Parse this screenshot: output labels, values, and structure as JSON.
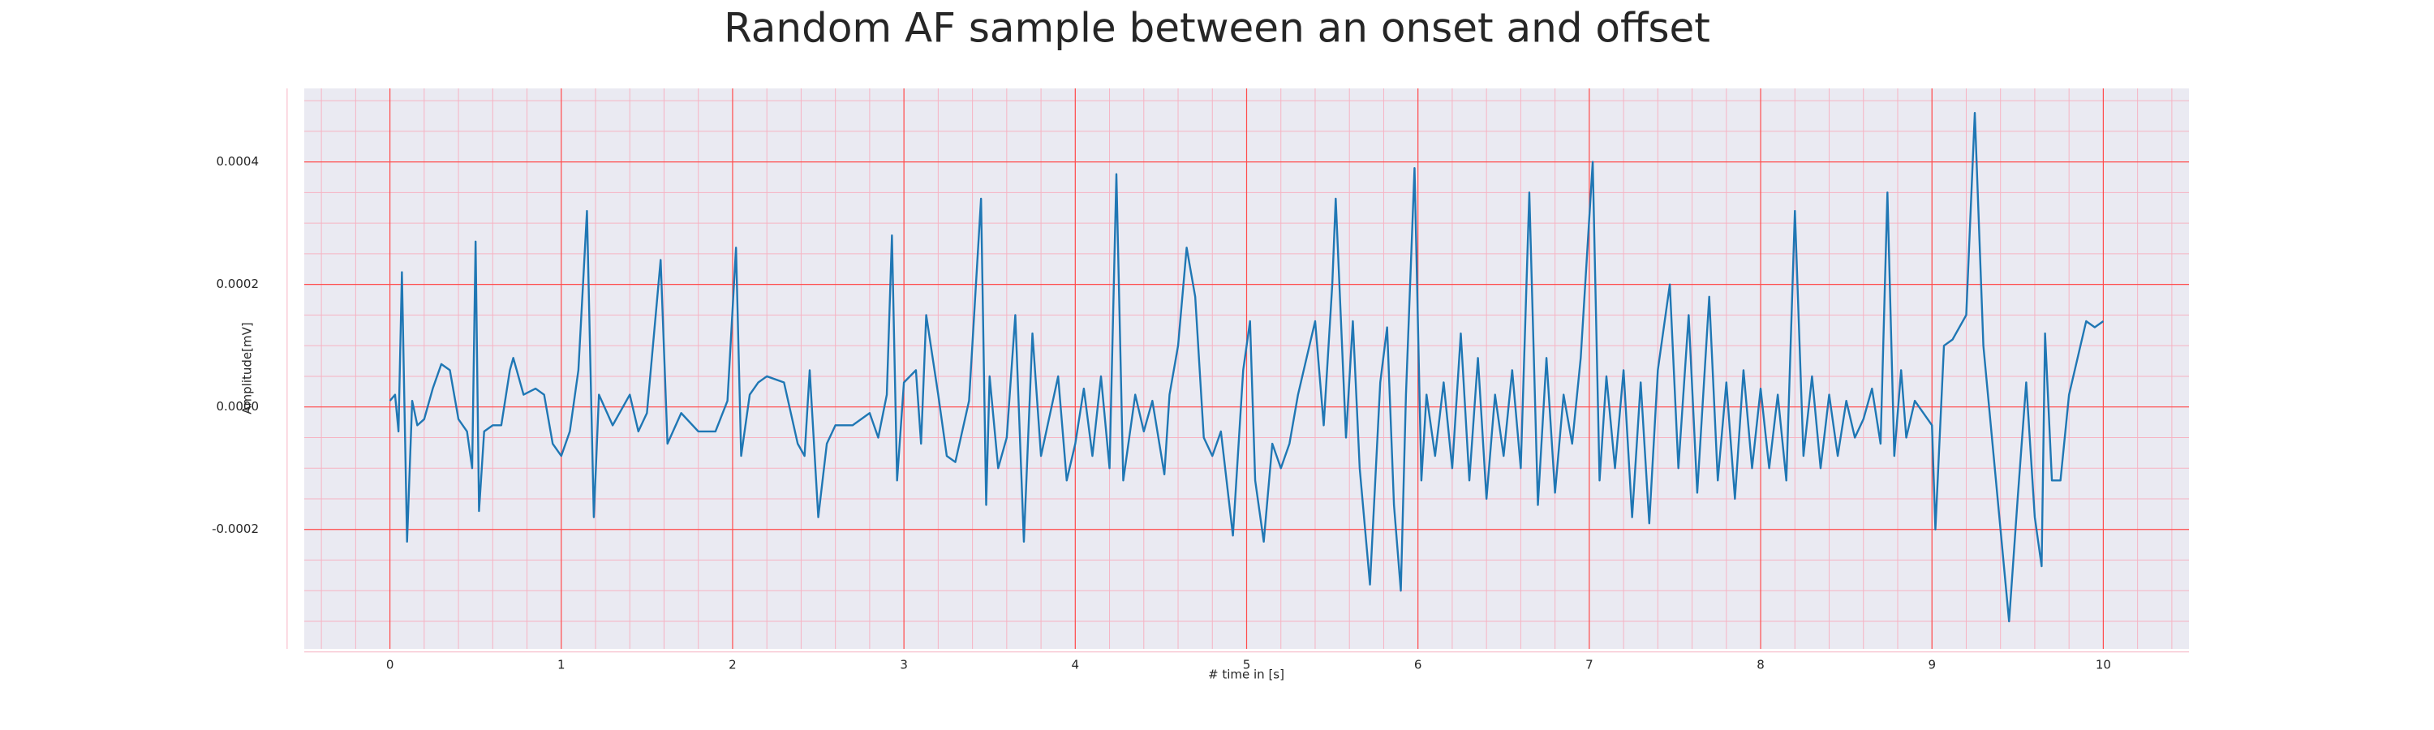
{
  "chart_data": {
    "type": "line",
    "title": "Random AF sample between an onset and offset",
    "x_label": "# time in [s]",
    "y_label": "Amplitude[mV]",
    "color": "#1f77b4",
    "grid": true,
    "minor_grid": true,
    "xlim": [
      -0.5,
      10.5
    ],
    "ylim": [
      -0.000395,
      0.00052
    ],
    "xticks": [
      0,
      1,
      2,
      3,
      4,
      5,
      6,
      7,
      8,
      9,
      10
    ],
    "yticks": [
      {
        "value": -0.0002,
        "label": "-0.0002"
      },
      {
        "value": 0,
        "label": "0.0000"
      },
      {
        "value": 0.0002,
        "label": "0.0002"
      },
      {
        "value": 0.0004,
        "label": "0.0004"
      }
    ],
    "x": [
      0,
      0.03,
      0.05,
      0.07,
      0.1,
      0.13,
      0.16,
      0.2,
      0.25,
      0.3,
      0.35,
      0.4,
      0.45,
      0.48,
      0.5,
      0.52,
      0.55,
      0.6,
      0.65,
      0.7,
      0.72,
      0.78,
      0.85,
      0.9,
      0.95,
      1.0,
      1.05,
      1.1,
      1.15,
      1.19,
      1.22,
      1.3,
      1.4,
      1.45,
      1.5,
      1.58,
      1.62,
      1.7,
      1.8,
      1.9,
      1.97,
      2.02,
      2.05,
      2.1,
      2.15,
      2.2,
      2.3,
      2.38,
      2.42,
      2.45,
      2.5,
      2.55,
      2.6,
      2.7,
      2.8,
      2.85,
      2.9,
      2.93,
      2.96,
      3.0,
      3.07,
      3.1,
      3.13,
      3.2,
      3.25,
      3.3,
      3.38,
      3.45,
      3.48,
      3.5,
      3.55,
      3.6,
      3.65,
      3.7,
      3.75,
      3.8,
      3.9,
      3.95,
      4.0,
      4.05,
      4.1,
      4.15,
      4.2,
      4.24,
      4.28,
      4.35,
      4.4,
      4.45,
      4.52,
      4.55,
      4.6,
      4.65,
      4.7,
      4.75,
      4.8,
      4.85,
      4.92,
      4.98,
      5.02,
      5.05,
      5.1,
      5.15,
      5.2,
      5.25,
      5.3,
      5.35,
      5.4,
      5.45,
      5.5,
      5.52,
      5.58,
      5.62,
      5.66,
      5.72,
      5.78,
      5.82,
      5.86,
      5.9,
      5.93,
      5.98,
      6.02,
      6.05,
      6.1,
      6.15,
      6.2,
      6.25,
      6.3,
      6.35,
      6.4,
      6.45,
      6.5,
      6.55,
      6.6,
      6.65,
      6.7,
      6.75,
      6.8,
      6.85,
      6.9,
      6.95,
      7.02,
      7.06,
      7.1,
      7.15,
      7.2,
      7.25,
      7.3,
      7.35,
      7.4,
      7.47,
      7.52,
      7.58,
      7.63,
      7.7,
      7.75,
      7.8,
      7.85,
      7.9,
      7.95,
      8.0,
      8.05,
      8.1,
      8.15,
      8.2,
      8.25,
      8.3,
      8.35,
      8.4,
      8.45,
      8.5,
      8.55,
      8.6,
      8.65,
      8.7,
      8.74,
      8.78,
      8.82,
      8.85,
      8.9,
      9.0,
      9.02,
      9.07,
      9.12,
      9.2,
      9.25,
      9.3,
      9.35,
      9.4,
      9.45,
      9.5,
      9.55,
      9.6,
      9.64,
      9.66,
      9.7,
      9.75,
      9.8,
      9.85,
      9.9,
      9.95,
      10.0
    ],
    "values": [
      1e-05,
      2e-05,
      -4e-05,
      0.00022,
      -0.00022,
      1e-05,
      -3e-05,
      -2e-05,
      3e-05,
      7e-05,
      6e-05,
      -2e-05,
      -4e-05,
      -0.0001,
      0.00027,
      -0.00017,
      -4e-05,
      -3e-05,
      -3e-05,
      6e-05,
      8e-05,
      2e-05,
      3e-05,
      2e-05,
      -6e-05,
      -8e-05,
      -4e-05,
      6e-05,
      0.00032,
      -0.00018,
      2e-05,
      -3e-05,
      2e-05,
      -4e-05,
      -1e-05,
      0.00024,
      -6e-05,
      -1e-05,
      -4e-05,
      -4e-05,
      1e-05,
      0.00026,
      -8e-05,
      2e-05,
      4e-05,
      5e-05,
      4e-05,
      -6e-05,
      -8e-05,
      6e-05,
      -0.00018,
      -6e-05,
      -3e-05,
      -3e-05,
      -1e-05,
      -5e-05,
      2e-05,
      0.00028,
      -0.00012,
      4e-05,
      6e-05,
      -6e-05,
      0.00015,
      2e-05,
      -8e-05,
      -9e-05,
      1e-05,
      0.00034,
      -0.00016,
      5e-05,
      -0.0001,
      -5e-05,
      0.00015,
      -0.00022,
      0.00012,
      -8e-05,
      5e-05,
      -0.00012,
      -6e-05,
      3e-05,
      -8e-05,
      5e-05,
      -0.0001,
      0.00038,
      -0.00012,
      2e-05,
      -4e-05,
      1e-05,
      -0.00011,
      2e-05,
      0.0001,
      0.00026,
      0.00018,
      -5e-05,
      -8e-05,
      -4e-05,
      -0.00021,
      6e-05,
      0.00014,
      -0.00012,
      -0.00022,
      -6e-05,
      -0.0001,
      -6e-05,
      2e-05,
      8e-05,
      0.00014,
      -3e-05,
      0.0002,
      0.00034,
      -5e-05,
      0.00014,
      -0.0001,
      -0.00029,
      4e-05,
      0.00013,
      -0.00016,
      -0.0003,
      2e-05,
      0.00039,
      -0.00012,
      2e-05,
      -8e-05,
      4e-05,
      -0.0001,
      0.00012,
      -0.00012,
      8e-05,
      -0.00015,
      2e-05,
      -8e-05,
      6e-05,
      -0.0001,
      0.00035,
      -0.00016,
      8e-05,
      -0.00014,
      2e-05,
      -6e-05,
      8e-05,
      0.0004,
      -0.00012,
      5e-05,
      -0.0001,
      6e-05,
      -0.00018,
      4e-05,
      -0.00019,
      6e-05,
      0.0002,
      -0.0001,
      0.00015,
      -0.00014,
      0.00018,
      -0.00012,
      4e-05,
      -0.00015,
      6e-05,
      -0.0001,
      3e-05,
      -0.0001,
      2e-05,
      -0.00012,
      0.00032,
      -8e-05,
      5e-05,
      -0.0001,
      2e-05,
      -8e-05,
      1e-05,
      -5e-05,
      -2e-05,
      3e-05,
      -6e-05,
      0.00035,
      -8e-05,
      6e-05,
      -5e-05,
      1e-05,
      -3e-05,
      -0.0002,
      0.0001,
      0.00011,
      0.00015,
      0.00048,
      0.0001,
      -5e-05,
      -0.0002,
      -0.00035,
      -0.00015,
      4e-05,
      -0.00018,
      -0.00026,
      0.00012,
      -0.00012,
      -0.00012,
      2e-05,
      8e-05,
      0.00014,
      0.00013,
      0.00014
    ]
  }
}
